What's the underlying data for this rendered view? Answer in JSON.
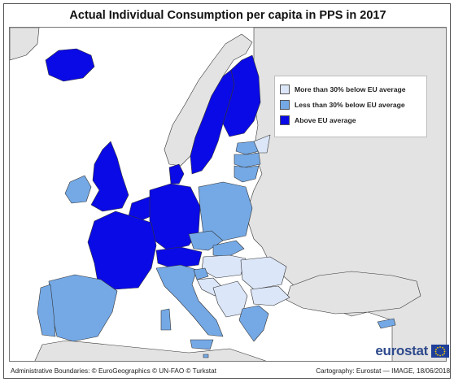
{
  "title": "Actual Individual Consumption per capita in PPS in 2017",
  "legend": {
    "items": [
      {
        "label": "More than 30% below EU average",
        "color": "#dbe6f8"
      },
      {
        "label": "Less than 30% below EU average",
        "color": "#74a9e6"
      },
      {
        "label": "Above EU average",
        "color": "#0a0ae6"
      }
    ]
  },
  "colors": {
    "sea": "#ffffff",
    "non_eu": "#e3e3e3",
    "border": "#333333"
  },
  "logo": {
    "text": "eurostat",
    "icon": "eu-flag-icon"
  },
  "footer": {
    "left": "Administrative Boundaries: © EuroGeographics © UN-FAO © Turkstat",
    "right": "Cartography: Eurostat — IMAGE, 18/06/2018"
  }
}
